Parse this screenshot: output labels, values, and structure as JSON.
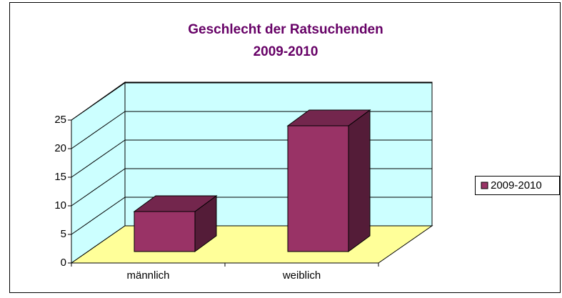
{
  "chart_data": {
    "type": "bar3d",
    "title": [
      "Geschlecht der Ratsuchenden",
      "2009-2010"
    ],
    "categories": [
      "männlich",
      "weiblich"
    ],
    "series": [
      {
        "name": "2009-2010",
        "color": "#993366",
        "values": [
          7,
          22
        ]
      }
    ],
    "ylim": [
      0,
      25
    ],
    "yticks": [
      0,
      5,
      10,
      15,
      20,
      25
    ],
    "grid": true,
    "legend": "right"
  }
}
